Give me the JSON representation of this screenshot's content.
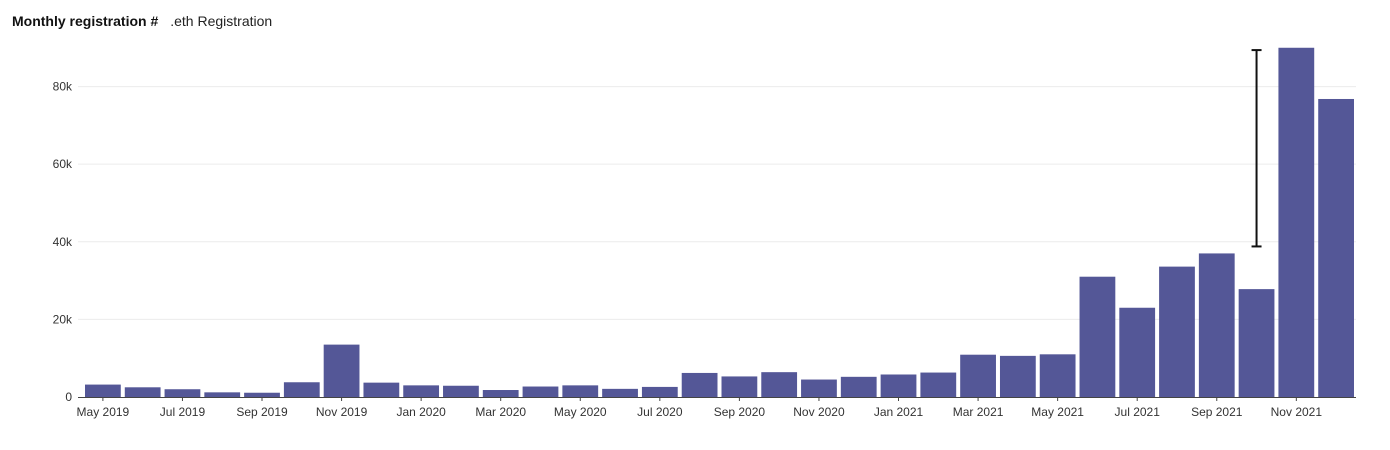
{
  "header": {
    "title": "Monthly registration #",
    "subtitle": ".eth Registration"
  },
  "colors": {
    "bar": "#545797",
    "grid": "#ececec",
    "axis": "#444444",
    "error_bar": "#111111"
  },
  "chart_data": {
    "type": "bar",
    "title": "Monthly registration #",
    "subtitle": ".eth Registration",
    "categories": [
      "May 2019",
      "Jun 2019",
      "Jul 2019",
      "Aug 2019",
      "Sep 2019",
      "Oct 2019",
      "Nov 2019",
      "Dec 2019",
      "Jan 2020",
      "Feb 2020",
      "Mar 2020",
      "Apr 2020",
      "May 2020",
      "Jun 2020",
      "Jul 2020",
      "Aug 2020",
      "Sep 2020",
      "Oct 2020",
      "Nov 2020",
      "Dec 2020",
      "Jan 2021",
      "Feb 2021",
      "Mar 2021",
      "Apr 2021",
      "May 2021",
      "Jun 2021",
      "Jul 2021",
      "Aug 2021",
      "Sep 2021",
      "Oct 2021",
      "Nov 2021",
      "Dec 2021"
    ],
    "x_tick_labels": [
      "May 2019",
      "Jul 2019",
      "Sep 2019",
      "Nov 2019",
      "Jan 2020",
      "Mar 2020",
      "May 2020",
      "Jul 2020",
      "Sep 2020",
      "Nov 2020",
      "Jan 2021",
      "Mar 2021",
      "May 2021",
      "Jul 2021",
      "Sep 2021",
      "Nov 2021"
    ],
    "values": [
      3200,
      2500,
      2000,
      1200,
      1100,
      3800,
      13500,
      3700,
      3000,
      2900,
      1800,
      2700,
      3000,
      2100,
      2600,
      6200,
      5300,
      6400,
      4500,
      5200,
      5800,
      6300,
      10900,
      10600,
      11000,
      31000,
      23000,
      33600,
      37000,
      27800,
      90000,
      76800
    ],
    "y_ticks": [
      0,
      20000,
      40000,
      60000,
      80000
    ],
    "y_tick_labels": [
      "0",
      "20k",
      "40k",
      "60k",
      "80k"
    ],
    "ylim": [
      0,
      92000
    ],
    "error_bar": {
      "category": "Oct 2021",
      "low": 38800,
      "high": 89400
    },
    "grid": true,
    "xlabel": "",
    "ylabel": ""
  }
}
